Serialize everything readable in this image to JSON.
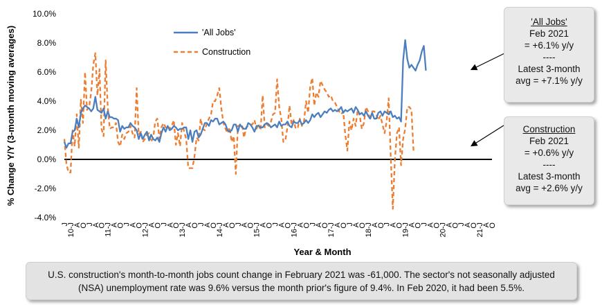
{
  "chart_data": {
    "type": "line",
    "xlabel": "Year & Month",
    "ylabel": "% Change Y/Y (3-month moving averages)",
    "ylim": [
      -4,
      10
    ],
    "yticks": [
      "-4.0%",
      "-2.0%",
      "0.0%",
      "2.0%",
      "4.0%",
      "6.0%",
      "8.0%",
      "10.0%"
    ],
    "ytick_values": [
      -4,
      -2,
      0,
      2,
      4,
      6,
      8,
      10
    ],
    "xticks": [
      "J",
      "10-J",
      "A",
      "O",
      "J",
      "A",
      "O",
      "11-J",
      "A",
      "O",
      "J",
      "A",
      "O",
      "12-J",
      "A",
      "O",
      "J",
      "A",
      "O",
      "13-J",
      "A",
      "O",
      "J",
      "A",
      "O",
      "14-J",
      "A",
      "O",
      "J",
      "A",
      "O",
      "15-J",
      "A",
      "O",
      "J",
      "A",
      "O",
      "16-J",
      "A",
      "O",
      "J",
      "A",
      "O",
      "17-J",
      "A",
      "O",
      "J",
      "A",
      "O",
      "18-J",
      "A",
      "O",
      "J",
      "A",
      "O",
      "19-J",
      "A",
      "O",
      "J",
      "A",
      "O",
      "20-J",
      "A",
      "O",
      "J",
      "A",
      "O",
      "21-J",
      "A",
      "O"
    ],
    "grid": false,
    "legend_position": "top-left",
    "series": [
      {
        "name": "'All Jobs'",
        "color": "#4a7ebf",
        "dash": false,
        "values": [
          1.2,
          0.8,
          1.1,
          1.1,
          1.9,
          2.0,
          2.8,
          2.2,
          3.2,
          3.5,
          3.7,
          3.6,
          3.5,
          3.3,
          3.5,
          4.3,
          3.4,
          3.3,
          3.2,
          3.5,
          2.8,
          3.3,
          2.9,
          2.9,
          2.8,
          2.8,
          2.7,
          1.9,
          2.3,
          2.1,
          2.2,
          2.2,
          2.5,
          2.3,
          2.2,
          2.0,
          1.4,
          1.8,
          1.4,
          1.7,
          1.9,
          1.3,
          1.7,
          1.4,
          1.3,
          1.5,
          1.2,
          1.8,
          2.2,
          1.9,
          2.3,
          2.0,
          2.1,
          2.3,
          2.2,
          2.0,
          2.1,
          2.1,
          2.2,
          2.2,
          1.4,
          2.0,
          1.2,
          1.9,
          2.0,
          1.5,
          1.7,
          2.1,
          2.5,
          2.5,
          2.3,
          2.7,
          2.6,
          2.8,
          2.8,
          2.4,
          2.5,
          2.6,
          2.4,
          2.0,
          1.9,
          2.0,
          2.4,
          2.4,
          1.9,
          2.4,
          2.2,
          2.1,
          2.1,
          2.5,
          2.4,
          2.2,
          1.9,
          2.3,
          2.3,
          2.2,
          2.2,
          2.4,
          2.5,
          2.4,
          2.2,
          2.3,
          2.4,
          2.2,
          2.6,
          2.3,
          2.4,
          2.4,
          2.6,
          2.3,
          2.2,
          2.6,
          2.5,
          2.5,
          2.7,
          2.4,
          2.5,
          2.7,
          2.5,
          2.7,
          3.1,
          2.9,
          3.1,
          3.2,
          2.9,
          3.1,
          3.3,
          3.2,
          3.4,
          3.5,
          3.3,
          3.4,
          3.3,
          3.4,
          3.6,
          3.2,
          3.4,
          3.3,
          3.4,
          3.5,
          3.2,
          3.6,
          3.4,
          3.1,
          3.2,
          3.0,
          3.3,
          3.0,
          2.8,
          3.2,
          2.8,
          2.8,
          3.2,
          3.3,
          3.0,
          3.3,
          3.2,
          3.1,
          3.3,
          2.9,
          3.0,
          2.8,
          2.9,
          2.6,
          6.8,
          8.2,
          6.9,
          6.3,
          6.5,
          6.3,
          6.1,
          6.5,
          6.8,
          7.4,
          7.8,
          6.1
        ]
      },
      {
        "name": "Construction",
        "color": "#ed7d31",
        "dash": true,
        "values": [
          1.4,
          -0.3,
          -0.9,
          -0.9,
          2.0,
          0.9,
          3.1,
          0.8,
          4.1,
          2.5,
          6.0,
          3.4,
          3.6,
          4.6,
          6.5,
          7.3,
          4.4,
          6.2,
          2.1,
          1.6,
          6.8,
          3.6,
          2.1,
          2.2,
          2.2,
          2.5,
          1.2,
          0.9,
          1.7,
          1.4,
          1.8,
          1.9,
          2.3,
          1.8,
          1.5,
          4.9,
          1.7,
          1.9,
          1.2,
          1.4,
          1.7,
          1.8,
          1.2,
          1.5,
          2.6,
          2.8,
          1.4,
          2.2,
          2.5,
          2.2,
          2.3,
          2.1,
          2.3,
          2.7,
          1.0,
          1.8,
          0.9,
          2.5,
          1.9,
          1.4,
          -0.6,
          -0.6,
          -0.6,
          0.2,
          1.5,
          1.3,
          2.8,
          2.1,
          2.0,
          2.5,
          2.8,
          3.1,
          4.0,
          4.0,
          4.4,
          4.9,
          3.5,
          2.5,
          2.1,
          1.8,
          2.2,
          1.2,
          1.6,
          -1.0,
          2.3,
          2.3,
          2.4,
          1.5,
          2.2,
          2.3,
          2.4,
          2.4,
          2.7,
          2.1,
          2.4,
          2.0,
          4.4,
          2.2,
          2.4,
          2.3,
          2.6,
          3.1,
          3.2,
          5.5,
          3.6,
          2.8,
          1.2,
          1.3,
          2.2,
          3.7,
          2.4,
          2.7,
          2.1,
          2.2,
          2.8,
          2.3,
          2.6,
          4.0,
          3.2,
          5.0,
          5.6,
          3.7,
          4.6,
          4.3,
          5.4,
          5.1,
          4.8,
          4.6,
          4.3,
          4.4,
          4.0,
          3.9,
          3.6,
          3.3,
          3.1,
          3.3,
          1.7,
          0.6,
          2.6,
          2.0,
          2.8,
          2.3,
          3.4,
          3.0,
          2.1,
          2.5,
          3.6,
          3.3,
          2.7,
          3.3,
          3.3,
          3.1,
          2.7,
          3.0,
          2.4,
          1.8,
          2.6,
          4.2,
          0.2,
          -3.4,
          0.0,
          1.8,
          2.2,
          -0.4,
          1.4,
          2.1,
          3.6,
          3.6,
          3.4,
          0.6
        ]
      }
    ]
  },
  "callouts": {
    "all_jobs": {
      "title": "'All Jobs'",
      "line1": "Feb 2021",
      "line2": "= +6.1% y/y",
      "line3": "----",
      "line4": "Latest 3-month",
      "line5": "avg = +7.1% y/y"
    },
    "construction": {
      "title": "Construction",
      "line1": "Feb 2021",
      "line2": "= +0.6% y/y",
      "line3": "----",
      "line4": "Latest 3-month",
      "line5": "avg = +2.6% y/y"
    }
  },
  "footnote": "U.S. construction's month-to-month jobs count change in February 2021 was -61,000. The sector's not seasonally adjusted (NSA) unemployment rate was 9.6% versus the month prior's figure of 9.4%. In Feb 2020, it had been 5.5%."
}
